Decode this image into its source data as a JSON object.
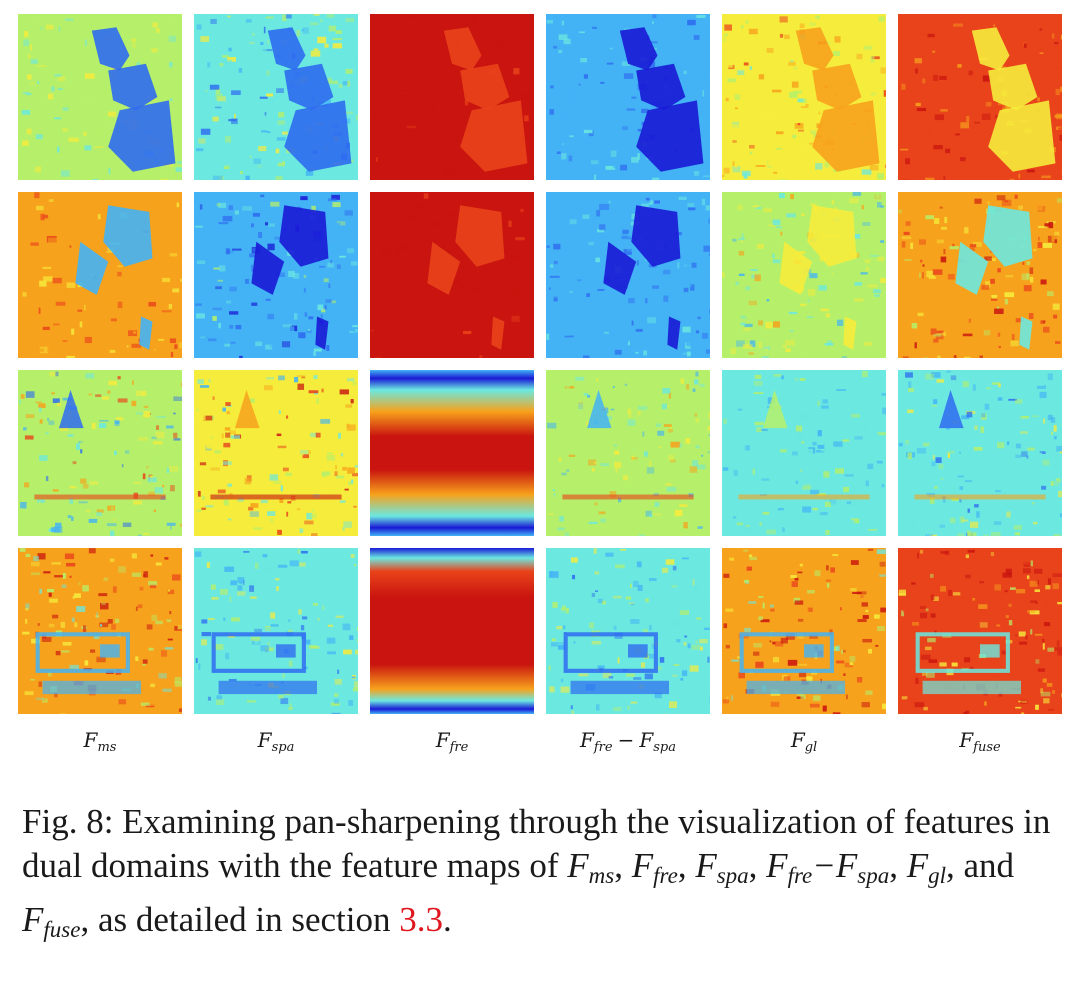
{
  "columns": [
    {
      "base": "F",
      "sub": "ms"
    },
    {
      "base": "F",
      "sub": "spa"
    },
    {
      "base": "F",
      "sub": "fre"
    },
    {
      "base": "F",
      "sub": "fre",
      "op": "−",
      "base2": "F",
      "sub2": "spa"
    },
    {
      "base": "F",
      "sub": "gl"
    },
    {
      "base": "F",
      "sub": "fuse"
    }
  ],
  "rows": 4,
  "colormap": [
    "#1a1ad6",
    "#2f6bf0",
    "#43b3f5",
    "#6be8e0",
    "#b6f06a",
    "#f6ec3c",
    "#f7a21c",
    "#e9431b",
    "#c9140f"
  ],
  "caption": {
    "prefix": "Fig. 8:",
    "text_1": "Examining pan-sharpening through the visualization of features in dual domains with the feature maps of",
    "m1": {
      "base": "F",
      "sub": "ms"
    },
    "m2": {
      "base": "F",
      "sub": "fre"
    },
    "m3": {
      "base": "F",
      "sub": "spa"
    },
    "m4": {
      "base": "F",
      "sub": "fre",
      "base2": "F",
      "sub2": "spa"
    },
    "m5": {
      "base": "F",
      "sub": "gl"
    },
    "m6": {
      "base": "F",
      "sub": "fuse"
    },
    "and": "and",
    "text_2": "as detailed in section",
    "ref": "3.3",
    "end": "."
  }
}
